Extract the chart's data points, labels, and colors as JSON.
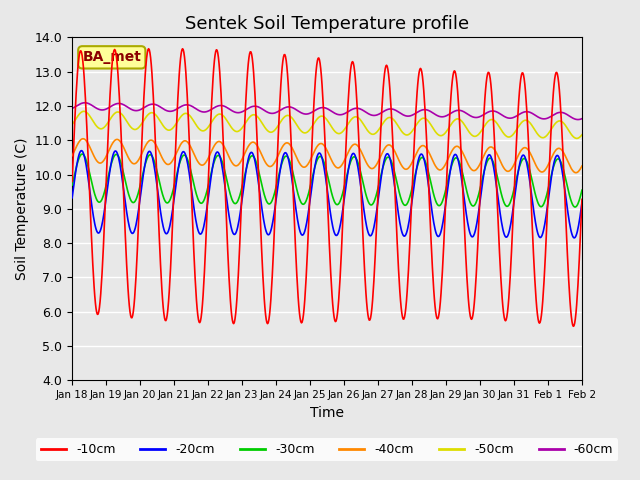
{
  "title": "Sentek Soil Temperature profile",
  "xlabel": "Time",
  "ylabel": "Soil Temperature (C)",
  "ylim": [
    4.0,
    14.0
  ],
  "yticks": [
    4.0,
    5.0,
    6.0,
    7.0,
    8.0,
    9.0,
    10.0,
    11.0,
    12.0,
    13.0,
    14.0
  ],
  "bg_color": "#e8e8e8",
  "plot_bg": "#e8e8e8",
  "annotation_label": "BA_met",
  "annotation_color": "#8b0000",
  "annotation_bg": "#ffff99",
  "lines": {
    "-10cm": {
      "color": "#ff0000",
      "lw": 1.2,
      "mean": 9.8,
      "amp": 3.8,
      "phase_shift": 0.0,
      "trend": -0.035
    },
    "-20cm": {
      "color": "#0000ff",
      "lw": 1.2,
      "mean": 9.5,
      "amp": 1.2,
      "phase_shift": 0.15,
      "trend": -0.01
    },
    "-30cm": {
      "color": "#00cc00",
      "lw": 1.2,
      "mean": 9.9,
      "amp": 0.7,
      "phase_shift": 0.3,
      "trend": -0.01
    },
    "-40cm": {
      "color": "#ff8800",
      "lw": 1.2,
      "mean": 10.7,
      "amp": 0.35,
      "phase_shift": 0.45,
      "trend": -0.02
    },
    "-50cm": {
      "color": "#dddd00",
      "lw": 1.2,
      "mean": 11.6,
      "amp": 0.25,
      "phase_shift": 0.6,
      "trend": -0.02
    },
    "-60cm": {
      "color": "#aa00aa",
      "lw": 1.2,
      "mean": 12.0,
      "amp": 0.1,
      "phase_shift": 0.8,
      "trend": -0.02
    }
  },
  "xtick_labels": [
    "Jan 18",
    "Jan 19",
    "Jan 20",
    "Jan 21",
    "Jan 22",
    "Jan 23",
    "Jan 24",
    "Jan 25",
    "Jan 26",
    "Jan 27",
    "Jan 28",
    "Jan 29",
    "Jan 30",
    "Jan 31",
    "Feb 1",
    "Feb 2"
  ],
  "legend_order": [
    "-10cm",
    "-20cm",
    "-30cm",
    "-40cm",
    "-50cm",
    "-60cm"
  ]
}
